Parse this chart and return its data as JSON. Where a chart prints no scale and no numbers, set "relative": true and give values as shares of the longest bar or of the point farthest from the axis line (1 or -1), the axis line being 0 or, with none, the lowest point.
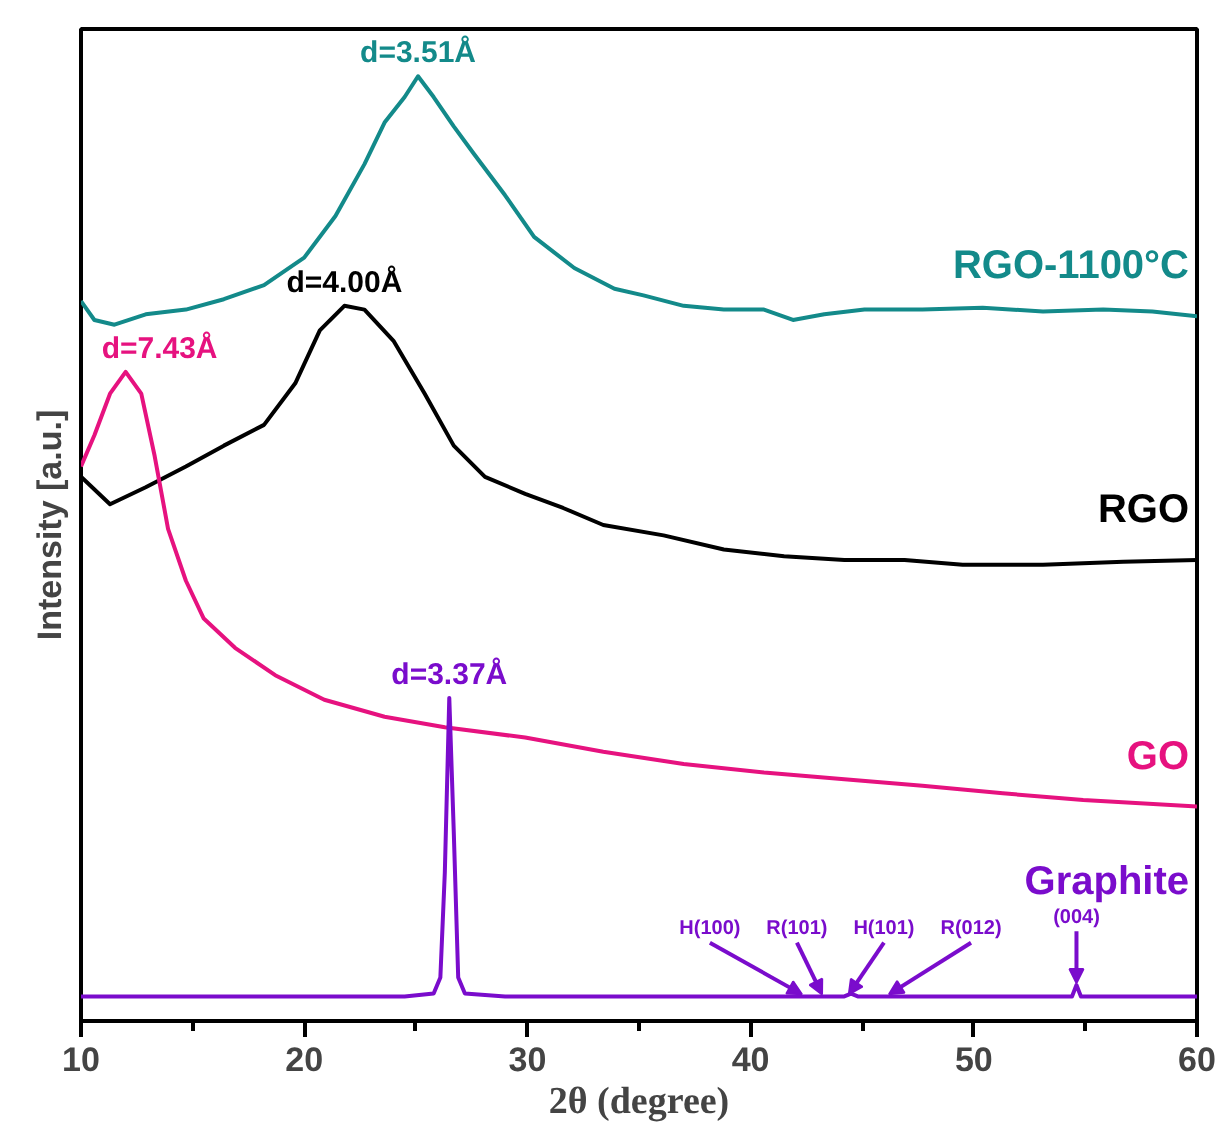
{
  "chart_data": {
    "type": "line",
    "relative": true,
    "xlabel": "2θ (degree)",
    "ylabel": "Intensity [a.u.]",
    "xlim": [
      10,
      60
    ],
    "xticks": [
      10,
      20,
      30,
      40,
      50,
      60
    ],
    "grid": false,
    "marker": "none",
    "line_style": "solid",
    "series": [
      {
        "name": "RGO-1100°C",
        "color": "#138a8a",
        "x": [
          10.0,
          10.6,
          11.5,
          12.9,
          14.7,
          16.4,
          18.2,
          20.0,
          21.4,
          22.7,
          23.6,
          24.5,
          25.1,
          25.8,
          26.7,
          27.6,
          29.0,
          30.3,
          32.1,
          33.9,
          35.2,
          37.0,
          38.8,
          40.6,
          41.9,
          43.3,
          45.1,
          47.7,
          50.4,
          53.1,
          55.8,
          58.0,
          60.0
        ],
        "values": [
          0.762,
          0.742,
          0.737,
          0.748,
          0.753,
          0.764,
          0.779,
          0.808,
          0.852,
          0.907,
          0.951,
          0.978,
          1.0,
          0.978,
          0.947,
          0.918,
          0.874,
          0.83,
          0.797,
          0.775,
          0.768,
          0.757,
          0.753,
          0.753,
          0.742,
          0.748,
          0.753,
          0.753,
          0.755,
          0.751,
          0.753,
          0.751,
          0.746
        ]
      },
      {
        "name": "RGO",
        "color": "#000000",
        "x": [
          10.0,
          11.3,
          12.9,
          14.7,
          16.4,
          18.2,
          19.6,
          20.7,
          21.8,
          22.7,
          24.0,
          25.4,
          26.7,
          28.1,
          29.9,
          31.6,
          33.4,
          36.1,
          38.8,
          41.5,
          44.2,
          46.9,
          49.5,
          53.1,
          56.7,
          60.0
        ],
        "values": [
          0.576,
          0.547,
          0.565,
          0.587,
          0.609,
          0.631,
          0.675,
          0.731,
          0.757,
          0.753,
          0.72,
          0.664,
          0.609,
          0.576,
          0.558,
          0.543,
          0.525,
          0.514,
          0.499,
          0.492,
          0.488,
          0.488,
          0.483,
          0.483,
          0.486,
          0.488
        ]
      },
      {
        "name": "GO",
        "color": "#e6127f",
        "x": [
          10.0,
          10.6,
          11.3,
          12.0,
          12.7,
          13.3,
          13.9,
          14.7,
          15.5,
          16.9,
          18.7,
          20.9,
          23.6,
          26.3,
          29.9,
          33.4,
          37.0,
          40.6,
          44.2,
          47.7,
          51.3,
          54.9,
          60.0
        ],
        "values": [
          0.587,
          0.62,
          0.664,
          0.687,
          0.664,
          0.598,
          0.521,
          0.466,
          0.426,
          0.395,
          0.366,
          0.34,
          0.322,
          0.311,
          0.3,
          0.285,
          0.272,
          0.263,
          0.256,
          0.249,
          0.241,
          0.234,
          0.227
        ]
      },
      {
        "name": "Graphite",
        "color": "#7a0ccc",
        "x": [
          10.0,
          24.5,
          25.8,
          26.1,
          26.3,
          26.5,
          26.7,
          26.9,
          27.2,
          29.0,
          44.2,
          44.5,
          44.8,
          54.4,
          54.6,
          54.8,
          60.0
        ],
        "values": [
          0.026,
          0.026,
          0.029,
          0.046,
          0.157,
          0.342,
          0.201,
          0.046,
          0.029,
          0.026,
          0.026,
          0.029,
          0.026,
          0.026,
          0.038,
          0.026,
          0.026
        ]
      }
    ],
    "annotations": [
      {
        "text": "d=3.51Å",
        "x": 25.1,
        "y": 1.0
      },
      {
        "text": "d=4.00Å",
        "x": 21.8,
        "y": 0.757
      },
      {
        "text": "d=7.43Å",
        "x": 12.0,
        "y": 0.687
      },
      {
        "text": "d=3.37Å",
        "x": 26.5,
        "y": 0.342
      },
      {
        "text": "H(100)",
        "x": 42.3,
        "y": 0.026
      },
      {
        "text": "R(101)",
        "x": 43.2,
        "y": 0.026
      },
      {
        "text": "H(101)",
        "x": 44.4,
        "y": 0.026
      },
      {
        "text": "R(012)",
        "x": 46.2,
        "y": 0.026
      },
      {
        "text": "(004)",
        "x": 54.6,
        "y": 0.038
      }
    ]
  }
}
